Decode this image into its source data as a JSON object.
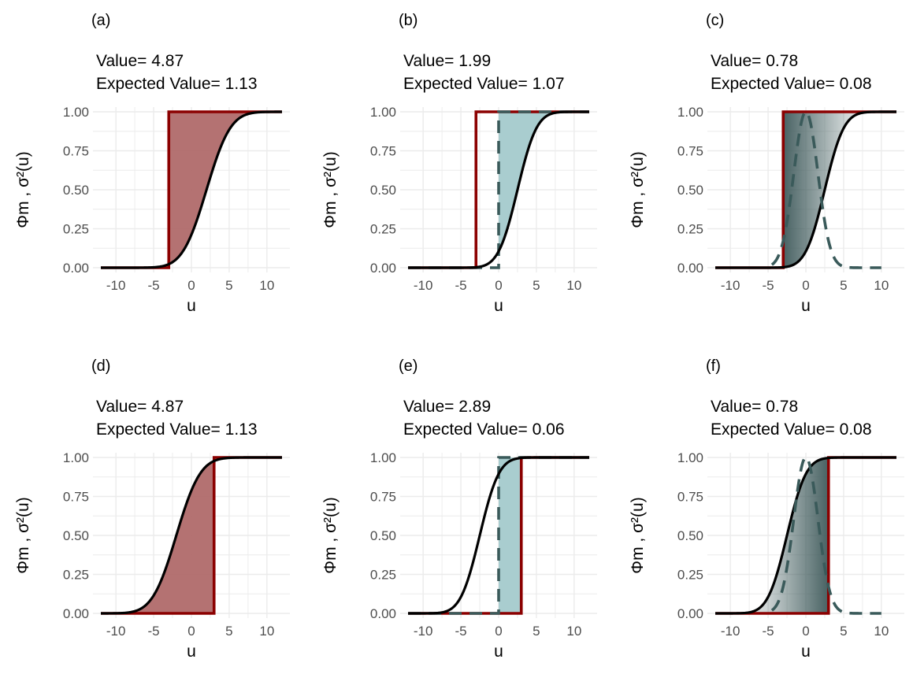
{
  "colors": {
    "step_red": "#8b0000",
    "fill_red": "#b06a6a",
    "fill_teal": "#a9cdcf",
    "gradient_dark": "#3f5a5b",
    "dashed_teal": "#3a5a5a",
    "cdf_black": "#000000",
    "grid": "#ebebeb",
    "tick_text": "#4d4d4d"
  },
  "chart_data": [
    {
      "panel": "(a)",
      "type": "line",
      "value_label": "Value= 4.87",
      "expected_label": "Expected Value= 1.13",
      "xlabel": "u",
      "ylabel": "Φm , σ²(u)",
      "xlim": [
        -12,
        12
      ],
      "ylim": [
        0,
        1
      ],
      "xticks": [
        -10,
        -5,
        0,
        5,
        10
      ],
      "yticks": [
        "0.00",
        "0.25",
        "0.50",
        "0.75",
        "1.00"
      ],
      "grid": true,
      "series": [
        {
          "kind": "normal_cdf",
          "mean": 2,
          "sd": 2.5
        },
        {
          "kind": "step",
          "at": -3,
          "direction": "up"
        }
      ],
      "fill": "area_between_step_and_cdf",
      "fill_style": "red"
    },
    {
      "panel": "(b)",
      "type": "line",
      "value_label": "Value= 1.99",
      "expected_label": "Expected Value= 1.07",
      "xlabel": "u",
      "ylabel": "Φm , σ²(u)",
      "xlim": [
        -12,
        12
      ],
      "ylim": [
        0,
        1
      ],
      "xticks": [
        -10,
        -5,
        0,
        5,
        10
      ],
      "yticks": [
        "0.00",
        "0.25",
        "0.50",
        "0.75",
        "1.00"
      ],
      "grid": true,
      "series": [
        {
          "kind": "normal_cdf",
          "mean": 2.5,
          "sd": 2.0
        },
        {
          "kind": "step",
          "at": -3,
          "direction": "up"
        },
        {
          "kind": "dashed_step",
          "at": 0,
          "direction": "up"
        }
      ],
      "fill": "area_between_dashed_step_and_cdf",
      "fill_style": "teal"
    },
    {
      "panel": "(c)",
      "type": "line",
      "value_label": "Value= 0.78",
      "expected_label": "Expected Value= 0.08",
      "xlabel": "u",
      "ylabel": "Φm , σ²(u)",
      "xlim": [
        -12,
        12
      ],
      "ylim": [
        0,
        1
      ],
      "xticks": [
        -10,
        -5,
        0,
        5,
        10
      ],
      "yticks": [
        "0.00",
        "0.25",
        "0.50",
        "0.75",
        "1.00"
      ],
      "grid": true,
      "series": [
        {
          "kind": "normal_cdf",
          "mean": 2.5,
          "sd": 2.0
        },
        {
          "kind": "step",
          "at": -3,
          "direction": "up"
        },
        {
          "kind": "dashed_density",
          "mean": 0,
          "sd": 1.6
        }
      ],
      "fill": "area_between_step_and_cdf",
      "fill_style": "gradient"
    },
    {
      "panel": "(d)",
      "type": "line",
      "value_label": "Value= 4.87",
      "expected_label": "Expected Value= 1.13",
      "xlabel": "u",
      "ylabel": "Φm , σ²(u)",
      "xlim": [
        -12,
        12
      ],
      "ylim": [
        0,
        1
      ],
      "xticks": [
        -10,
        -5,
        0,
        5,
        10
      ],
      "yticks": [
        "0.00",
        "0.25",
        "0.50",
        "0.75",
        "1.00"
      ],
      "grid": true,
      "series": [
        {
          "kind": "normal_cdf",
          "mean": -2,
          "sd": 2.5
        },
        {
          "kind": "step",
          "at": 3,
          "direction": "up"
        }
      ],
      "fill": "area_between_cdf_and_step",
      "fill_style": "red"
    },
    {
      "panel": "(e)",
      "type": "line",
      "value_label": "Value= 2.89",
      "expected_label": "Expected Value= 0.06",
      "xlabel": "u",
      "ylabel": "Φm , σ²(u)",
      "xlim": [
        -12,
        12
      ],
      "ylim": [
        0,
        1
      ],
      "xticks": [
        -10,
        -5,
        0,
        5,
        10
      ],
      "yticks": [
        "0.00",
        "0.25",
        "0.50",
        "0.75",
        "1.00"
      ],
      "grid": true,
      "series": [
        {
          "kind": "normal_cdf",
          "mean": -2.5,
          "sd": 2.0
        },
        {
          "kind": "step",
          "at": 3,
          "direction": "up"
        },
        {
          "kind": "dashed_step",
          "at": 0,
          "direction": "up"
        }
      ],
      "fill": "area_between_dashed_step_and_step",
      "fill_style": "teal"
    },
    {
      "panel": "(f)",
      "type": "line",
      "value_label": "Value= 0.78",
      "expected_label": "Expected Value= 0.08",
      "xlabel": "u",
      "ylabel": "Φm , σ²(u)",
      "xlim": [
        -12,
        12
      ],
      "ylim": [
        0,
        1
      ],
      "xticks": [
        -10,
        -5,
        0,
        5,
        10
      ],
      "yticks": [
        "0.00",
        "0.25",
        "0.50",
        "0.75",
        "1.00"
      ],
      "grid": true,
      "series": [
        {
          "kind": "normal_cdf",
          "mean": -2.5,
          "sd": 2.0
        },
        {
          "kind": "step",
          "at": 3,
          "direction": "up"
        },
        {
          "kind": "dashed_density",
          "mean": 0,
          "sd": 1.6
        }
      ],
      "fill": "area_between_cdf_and_step",
      "fill_style": "gradient"
    }
  ]
}
